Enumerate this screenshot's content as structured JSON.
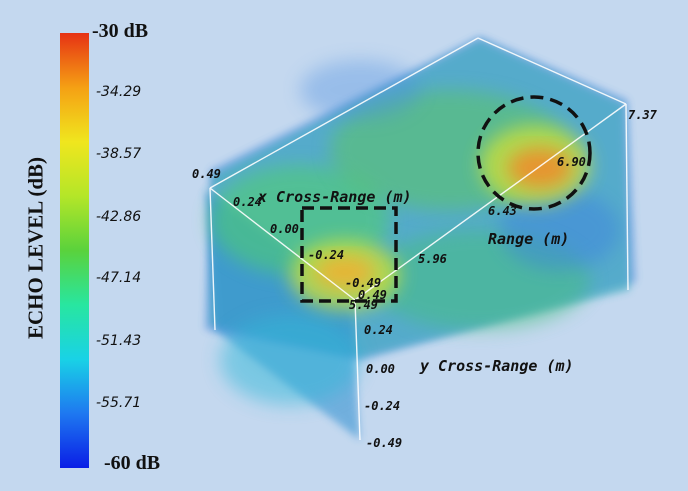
{
  "chart_data": {
    "type": "heatmap",
    "title": "",
    "colorbar": {
      "title": "ECHO LEVEL (dB)",
      "max_label": "-30 dB",
      "min_label": "-60 dB",
      "range": [
        -60,
        -30
      ],
      "tick_labels": [
        "-34.29",
        "-38.57",
        "-42.86",
        "-47.14",
        "-51.43",
        "-55.71"
      ],
      "colors": [
        "#0a1ee6",
        "#1e78f0",
        "#19d2e6",
        "#28e6a0",
        "#5ad23c",
        "#b4e628",
        "#f0e61e",
        "#f5a014",
        "#e63214"
      ]
    },
    "axes": {
      "x_label": "x Cross-Range (m)",
      "y_label": "y Cross-Range (m)",
      "z_label": "Range (m)",
      "x_ticks": [
        "0.49",
        "0.24",
        "0.00",
        "-0.24",
        "-0.49"
      ],
      "y_ticks": [
        "0.49",
        "0.24",
        "0.00",
        "-0.24",
        "-0.49"
      ],
      "range_ticks": [
        "5.49",
        "5.96",
        "6.43",
        "6.90",
        "7.37"
      ],
      "x_range": [
        -0.49,
        0.49
      ],
      "y_range": [
        -0.49,
        0.49
      ],
      "range_range": [
        5.49,
        7.37
      ]
    },
    "hotspots": [
      {
        "x": 0.0,
        "y": 0.05,
        "range": 5.7,
        "level": -36,
        "marker": "dashed-square"
      },
      {
        "x": 0.1,
        "y": 0.2,
        "range": 6.85,
        "level": -34,
        "marker": "dashed-circle"
      }
    ]
  }
}
